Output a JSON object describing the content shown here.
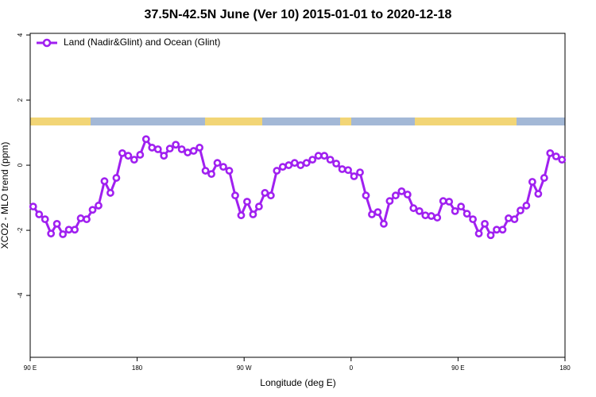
{
  "chart_data": {
    "type": "line",
    "title": "37.5N-42.5N June (Ver 10)   2015-01-01 to 2020-12-18",
    "x_label": "Longitude (deg E)",
    "y_label": "XCO2 - MLO trend (ppm)",
    "xlim": [
      90,
      540
    ],
    "xticks": [
      {
        "value": 90,
        "label": "90 E"
      },
      180,
      {
        "value": 270,
        "label": "90 W"
      },
      {
        "value": 360,
        "label": "0"
      },
      {
        "value": 450,
        "label": "90 E"
      },
      {
        "value": 540,
        "label": "180"
      }
    ],
    "ylim": [
      -5.9,
      4.05
    ],
    "yticks": [
      -4,
      -2,
      0,
      2,
      4
    ],
    "legend": "top-left",
    "x": [
      92.5,
      97.5,
      102.5,
      107.5,
      112.5,
      117.5,
      122.5,
      127.5,
      132.5,
      137.5,
      142.5,
      147.5,
      152.5,
      157.5,
      162.5,
      167.5,
      172.5,
      177.5,
      182.5,
      187.5,
      192.5,
      197.5,
      202.5,
      207.5,
      212.5,
      217.5,
      222.5,
      227.5,
      232.5,
      237.5,
      242.5,
      247.5,
      252.5,
      257.5,
      262.5,
      267.5,
      272.5,
      277.5,
      282.5,
      287.5,
      292.5,
      297.5,
      302.5,
      307.5,
      312.5,
      317.5,
      322.5,
      327.5,
      332.5,
      337.5,
      342.5,
      347.5,
      352.5,
      357.5,
      362.5,
      367.5,
      372.5,
      377.5,
      382.5,
      387.5,
      392.5,
      397.5,
      402.5,
      407.5,
      412.5,
      417.5,
      422.5,
      427.5,
      432.5,
      437.5,
      442.5,
      447.5,
      452.5,
      457.5,
      462.5,
      467.5,
      472.5,
      477.5,
      482.5,
      487.5,
      492.5,
      497.5,
      502.5,
      507.5,
      512.5,
      517.5,
      522.5,
      527.5,
      532.5,
      537.5
    ],
    "series": [
      {
        "name": "Land (Nadir&Glint) and Ocean (Glint)",
        "color": "#a020f0",
        "values": [
          -1.27,
          -1.51,
          -1.66,
          -2.1,
          -1.8,
          -2.12,
          -1.98,
          -1.98,
          -1.63,
          -1.66,
          -1.37,
          -1.24,
          -0.49,
          -0.85,
          -0.39,
          0.37,
          0.29,
          0.17,
          0.32,
          0.8,
          0.54,
          0.49,
          0.29,
          0.51,
          0.63,
          0.49,
          0.39,
          0.44,
          0.54,
          -0.17,
          -0.27,
          0.07,
          -0.05,
          -0.17,
          -0.93,
          -1.54,
          -1.12,
          -1.51,
          -1.27,
          -0.85,
          -0.93,
          -0.17,
          -0.05,
          0,
          0.07,
          0,
          0.07,
          0.17,
          0.29,
          0.29,
          0.17,
          0.05,
          -0.12,
          -0.15,
          -0.34,
          -0.22,
          -0.93,
          -1.51,
          -1.44,
          -1.8,
          -1.1,
          -0.93,
          -0.8,
          -0.9,
          -1.32,
          -1.41,
          -1.54,
          -1.56,
          -1.61,
          -1.1,
          -1.12,
          -1.41,
          -1.27,
          -1.49,
          -1.66,
          -2.1,
          -1.8,
          -2.15,
          -1.98,
          -1.98,
          -1.63,
          -1.66,
          -1.39,
          -1.24,
          -0.51,
          -0.88,
          -0.39,
          0.37,
          0.27,
          0.17
        ]
      }
    ]
  }
}
